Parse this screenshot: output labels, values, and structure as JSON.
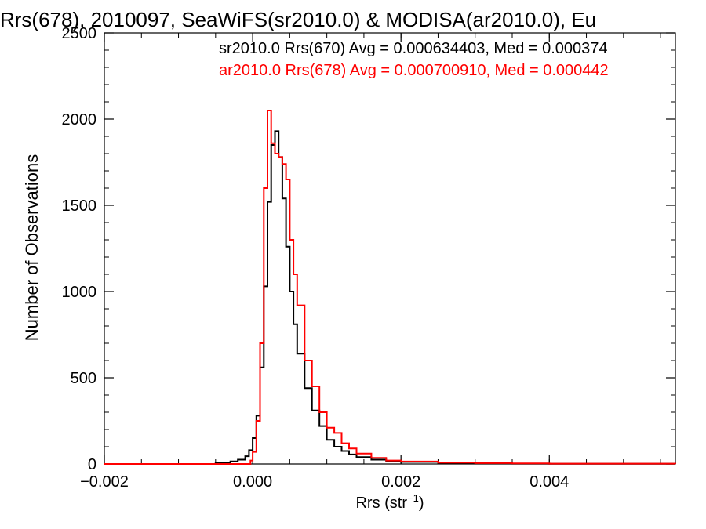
{
  "chart_data": {
    "type": "line",
    "title": "Rrs(678), 2010097, SeaWiFS(sr2010.0) & MODISA(ar2010.0), Eu",
    "xlabel": "Rrs (str",
    "xlabel_sup": "−1",
    "xlabel_tail": ")",
    "ylabel": "Number of Observations",
    "xlim": [
      -0.002,
      0.0057
    ],
    "ylim": [
      0,
      2500
    ],
    "x_ticks": [
      -0.002,
      0.0,
      0.002,
      0.004
    ],
    "x_tick_labels": [
      "−0.002",
      "0.000",
      "0.002",
      "0.004"
    ],
    "y_ticks": [
      0,
      500,
      1000,
      1500,
      2000,
      2500
    ],
    "y_tick_labels": [
      "0",
      "500",
      "1000",
      "1500",
      "2000",
      "2500"
    ],
    "grid": false,
    "legend_placement": "top-right",
    "series": [
      {
        "name": "sr2010.0 Rrs(670) Avg = 0.000634403, Med = 0.000374",
        "color": "#000000",
        "points": [
          [
            -0.002,
            0
          ],
          [
            -0.001,
            0
          ],
          [
            -0.0005,
            5
          ],
          [
            -0.0003,
            15
          ],
          [
            -0.0002,
            25
          ],
          [
            -0.0001,
            45
          ],
          [
            -5e-05,
            80
          ],
          [
            0.0,
            150
          ],
          [
            5e-05,
            280
          ],
          [
            0.0001,
            560
          ],
          [
            0.00015,
            1030
          ],
          [
            0.0002,
            1520
          ],
          [
            0.00025,
            1850
          ],
          [
            0.0003,
            1930
          ],
          [
            0.00035,
            1780
          ],
          [
            0.0004,
            1540
          ],
          [
            0.00045,
            1260
          ],
          [
            0.0005,
            1000
          ],
          [
            0.00055,
            810
          ],
          [
            0.0006,
            640
          ],
          [
            0.0007,
            440
          ],
          [
            0.0008,
            310
          ],
          [
            0.0009,
            220
          ],
          [
            0.001,
            140
          ],
          [
            0.0011,
            100
          ],
          [
            0.0012,
            75
          ],
          [
            0.0013,
            55
          ],
          [
            0.0014,
            40
          ],
          [
            0.0016,
            25
          ],
          [
            0.0018,
            18
          ],
          [
            0.002,
            12
          ],
          [
            0.0025,
            7
          ],
          [
            0.003,
            4
          ],
          [
            0.0035,
            2
          ],
          [
            0.004,
            1
          ],
          [
            0.0057,
            0
          ]
        ]
      },
      {
        "name": "ar2010.0 Rrs(678) Avg = 0.000700910, Med = 0.000442",
        "color": "#ff0000",
        "points": [
          [
            -0.002,
            0
          ],
          [
            -0.0001,
            0
          ],
          [
            -3e-05,
            20
          ],
          [
            0.0,
            70
          ],
          [
            5e-05,
            250
          ],
          [
            0.0001,
            700
          ],
          [
            0.00015,
            1600
          ],
          [
            0.0002,
            2050
          ],
          [
            0.00025,
            1860
          ],
          [
            0.0003,
            1800
          ],
          [
            0.00035,
            1780
          ],
          [
            0.0004,
            1740
          ],
          [
            0.00045,
            1650
          ],
          [
            0.0005,
            1300
          ],
          [
            0.00055,
            1100
          ],
          [
            0.0006,
            920
          ],
          [
            0.0007,
            600
          ],
          [
            0.0008,
            450
          ],
          [
            0.0009,
            300
          ],
          [
            0.001,
            210
          ],
          [
            0.0011,
            180
          ],
          [
            0.0012,
            120
          ],
          [
            0.0013,
            90
          ],
          [
            0.0014,
            60
          ],
          [
            0.0016,
            35
          ],
          [
            0.0018,
            20
          ],
          [
            0.002,
            14
          ],
          [
            0.0025,
            8
          ],
          [
            0.003,
            5
          ],
          [
            0.0035,
            3
          ],
          [
            0.004,
            2
          ],
          [
            0.0057,
            0
          ]
        ]
      }
    ]
  }
}
